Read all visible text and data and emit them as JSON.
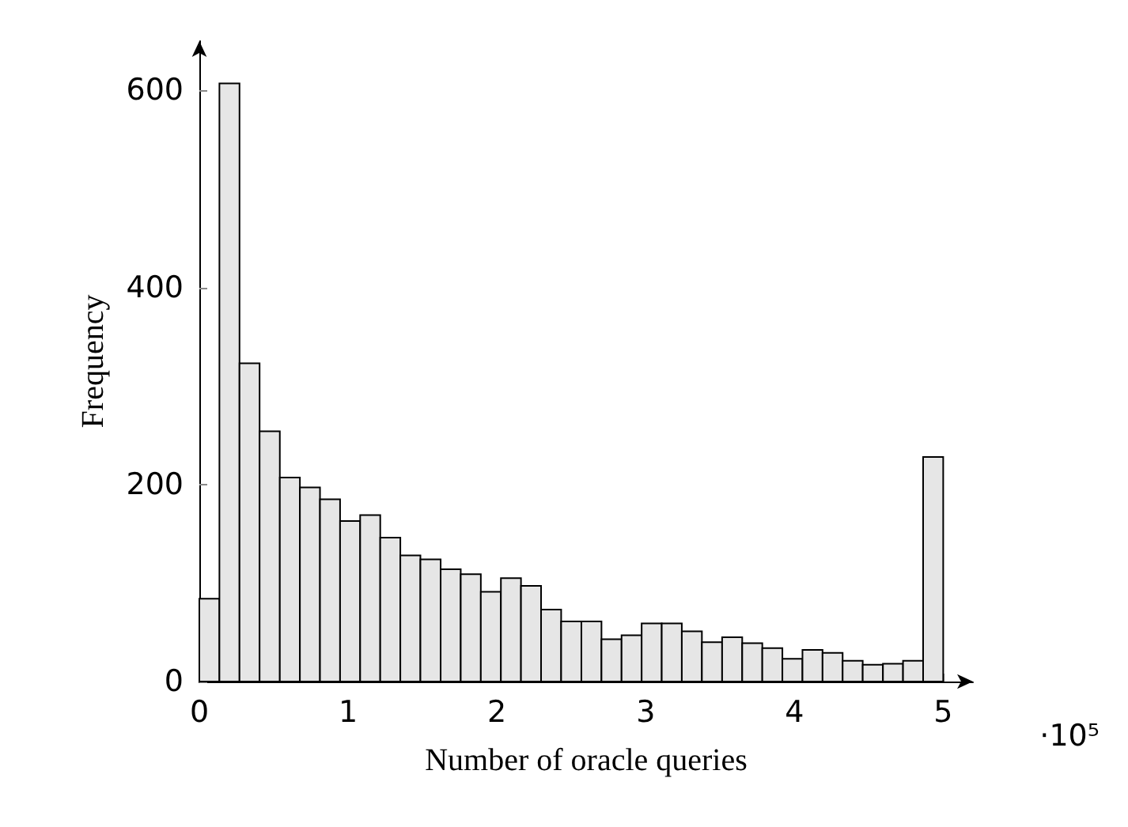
{
  "chart_data": {
    "type": "histogram",
    "xlabel": "Number of oracle queries",
    "ylabel": "Frequency",
    "bins": [
      0,
      0.135,
      0.27,
      0.405,
      0.541,
      0.676,
      0.811,
      0.946,
      1.081,
      1.216,
      1.351,
      1.486,
      1.622,
      1.757,
      1.892,
      2.027,
      2.162,
      2.297,
      2.432,
      2.568,
      2.703,
      2.838,
      2.973,
      3.108,
      3.243,
      3.378,
      3.514,
      3.649,
      3.784,
      3.919,
      4.054,
      4.189,
      4.324,
      4.459,
      4.595,
      4.73,
      4.865,
      5
    ],
    "values": [
      84,
      607,
      323,
      254,
      207,
      197,
      185,
      163,
      169,
      146,
      128,
      124,
      114,
      109,
      91,
      105,
      97,
      73,
      61,
      61,
      43,
      47,
      59,
      59,
      51,
      40,
      45,
      39,
      34,
      23,
      32,
      29,
      21,
      17,
      18,
      21,
      228
    ],
    "color": "#e6e6e6",
    "xlim": [
      0,
      5.2
    ],
    "ylim": [
      0,
      650
    ],
    "xticks": [
      0,
      1,
      2,
      3,
      4,
      5
    ],
    "yticks": [
      0,
      200,
      400,
      600
    ],
    "annotations": [
      "·10⁵"
    ],
    "grid": false
  }
}
